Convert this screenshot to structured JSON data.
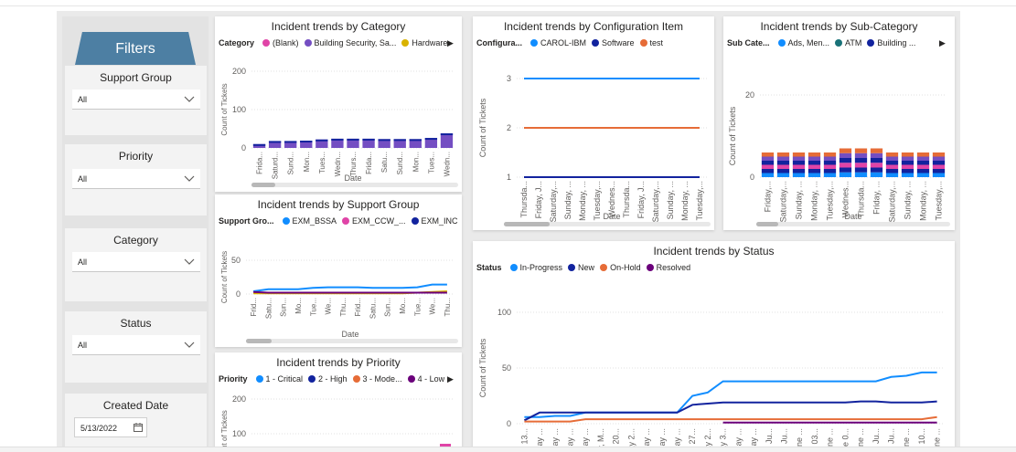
{
  "filters": {
    "header": "Filters",
    "slicers": [
      {
        "title": "Support Group",
        "value": "All"
      },
      {
        "title": "Priority",
        "value": "All"
      },
      {
        "title": "Category",
        "value": "All"
      },
      {
        "title": "Status",
        "value": "All"
      },
      {
        "title": "Created Date",
        "value": "5/13/2022"
      }
    ]
  },
  "colors": {
    "blue": "#118DFF",
    "darkblue": "#12239E",
    "orange": "#E66C37",
    "purple": "#6B007B",
    "pink": "#E044A7",
    "violet": "#744EC2",
    "gold": "#D9B300",
    "teal": "#197278"
  },
  "chart_data": [
    {
      "type": "bar",
      "title": "Incident trends by Category",
      "legend_title": "Category",
      "legend": [
        "(Blank)",
        "Building Security, Sa...",
        "Hardware"
      ],
      "xlabel": "Date",
      "ylabel": "Count of Tickets",
      "yticks": [
        "200",
        "100",
        "0"
      ],
      "ylim": [
        0,
        200
      ],
      "categories": [
        "Frida...",
        "Saturd...",
        "Sund...",
        "Mon...",
        "Tues...",
        "Wedn...",
        "Thurs...",
        "Frida...",
        "Satu...",
        "Sund...",
        "Mon...",
        "Tues...",
        "Wedn..."
      ],
      "values": [
        10,
        18,
        18,
        19,
        22,
        24,
        24,
        24,
        23,
        23,
        23,
        26,
        38
      ]
    },
    {
      "type": "line",
      "title": "Incident trends by Configuration Item",
      "legend_title": "Configura...",
      "legend": [
        "CAROL-IBM",
        "Software",
        "test"
      ],
      "xlabel": "Date",
      "ylabel": "Count of Tickets",
      "yticks": [
        "3",
        "2",
        "1"
      ],
      "ylim": [
        1,
        3
      ],
      "categories": [
        "Thursda...",
        "Friday, J...",
        "Saturday,...",
        "Sunday, ...",
        "Monday, ...",
        "Tuesday,...",
        "Wednes...",
        "Thursda...",
        "Friday, J...",
        "Saturday,...",
        "Sunday, ...",
        "Monday, ...",
        "Tuesday,..."
      ],
      "series": [
        {
          "name": "CAROL-IBM",
          "values": [
            3,
            3,
            3,
            3,
            3,
            3,
            3,
            3,
            3,
            3,
            3,
            3,
            3
          ]
        },
        {
          "name": "Software",
          "values": [
            1,
            1,
            1,
            1,
            1,
            1,
            1,
            1,
            1,
            1,
            1,
            1,
            1
          ]
        },
        {
          "name": "test",
          "values": [
            2,
            2,
            2,
            2,
            2,
            2,
            2,
            2,
            2,
            2,
            2,
            2,
            2
          ]
        }
      ]
    },
    {
      "type": "bar",
      "title": "Incident trends by Sub-Category",
      "legend_title": "Sub Cate...",
      "legend": [
        "Ads, Men...",
        "ATM",
        "Building ..."
      ],
      "xlabel": "Date",
      "ylabel": "Count of Tickets",
      "yticks": [
        "20",
        "0"
      ],
      "ylim": [
        0,
        20
      ],
      "categories": [
        "Friday,...",
        "Saturday,...",
        "Sunday, ...",
        "Monday, ...",
        "Tuesday,...",
        "Wednes...",
        "Thursda...",
        "Friday, ...",
        "Saturday,...",
        "Sunday, ...",
        "Monday, ...",
        "Tuesday,..."
      ],
      "values": [
        6,
        6,
        6,
        6,
        6,
        7,
        7,
        7,
        6,
        6,
        6,
        6
      ]
    },
    {
      "type": "line",
      "title": "Incident trends by Support Group",
      "legend_title": "Support Gro...",
      "legend": [
        "EXM_BSSA",
        "EXM_CCW_...",
        "EXM_INC"
      ],
      "xlabel": "Date",
      "ylabel": "Count of Tickets",
      "yticks": [
        "50",
        "0"
      ],
      "ylim": [
        0,
        50
      ],
      "categories": [
        "Frid...",
        "Satu...",
        "Sun...",
        "Mo...",
        "Tue...",
        "We...",
        "Thu...",
        "Frid...",
        "Satu...",
        "Sun...",
        "Mo...",
        "Tue...",
        "We...",
        "Thu..."
      ],
      "series": [
        {
          "name": "EXM_BSSA",
          "values": [
            4,
            7,
            7,
            7,
            9,
            10,
            10,
            10,
            9,
            9,
            9,
            10,
            14,
            14
          ]
        },
        {
          "name": "EXM_CCW_...",
          "values": [
            1,
            1,
            1,
            1,
            1,
            1,
            1,
            1,
            1,
            1,
            1,
            2,
            3,
            4
          ]
        },
        {
          "name": "EXM_INC",
          "values": [
            3,
            2,
            2,
            2,
            2,
            2,
            2,
            2,
            2,
            2,
            2,
            2,
            2,
            2
          ]
        }
      ]
    },
    {
      "type": "bar",
      "title": "Incident trends by Priority",
      "legend_title": "Priority",
      "legend": [
        "1 - Critical",
        "2 - High",
        "3 - Mode...",
        "4 - Low"
      ],
      "ylabel": "ount of Tickets",
      "yticks": [
        "200",
        "100"
      ],
      "ylim": [
        0,
        200
      ]
    },
    {
      "type": "line",
      "title": "Incident trends by Status",
      "legend_title": "Status",
      "legend": [
        "In-Progress",
        "New",
        "On-Hold",
        "Resolved"
      ],
      "ylabel": "Count of Tickets",
      "yticks": [
        "100",
        "50",
        "0"
      ],
      "ylim": [
        0,
        100
      ],
      "categories": [
        "13...",
        "ay ...",
        "ay ...",
        "ay ...",
        "ay ...",
        "ay, M...",
        "20...",
        "ay 2...",
        "ay ...",
        "ay ...",
        "ay ...",
        "27...",
        "ay 2...",
        "ay 3...",
        "ay ...",
        "ay ...",
        "ay, Ju...",
        "ay, Ju...",
        "une ...",
        "03...",
        "une ...",
        "une 0...",
        "une ...",
        "ay, Ju...",
        "ay, Ju...",
        "une ...",
        "10...",
        "une ..."
      ],
      "series": [
        {
          "name": "In-Progress",
          "values": [
            6,
            6,
            7,
            7,
            10,
            10,
            10,
            10,
            10,
            10,
            10,
            25,
            28,
            38,
            38,
            38,
            38,
            38,
            38,
            38,
            38,
            38,
            38,
            38,
            42,
            43,
            46,
            46
          ]
        },
        {
          "name": "New",
          "values": [
            3,
            10,
            10,
            10,
            10,
            10,
            10,
            10,
            10,
            10,
            10,
            17,
            18,
            19,
            19,
            19,
            19,
            19,
            19,
            19,
            19,
            19,
            20,
            20,
            19,
            19,
            19,
            20
          ]
        },
        {
          "name": "On-Hold",
          "values": [
            2,
            2,
            2,
            2,
            4,
            4,
            4,
            4,
            4,
            4,
            4,
            4,
            4,
            4,
            4,
            4,
            4,
            4,
            4,
            4,
            4,
            4,
            4,
            4,
            4,
            4,
            4,
            6
          ]
        },
        {
          "name": "Resolved",
          "values": [
            null,
            null,
            null,
            null,
            null,
            null,
            null,
            null,
            null,
            null,
            null,
            null,
            null,
            1,
            1,
            1,
            1,
            1,
            1,
            1,
            1,
            1,
            1,
            1,
            1,
            1,
            1,
            1
          ]
        }
      ]
    }
  ]
}
